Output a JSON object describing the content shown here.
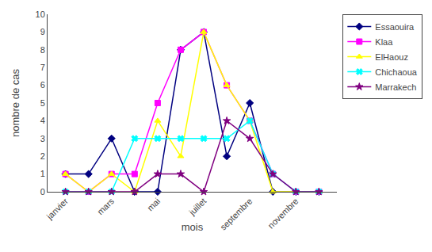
{
  "chart_data": {
    "type": "line",
    "categories": [
      "janvier",
      null,
      "mars",
      null,
      "mai",
      null,
      "juillet",
      null,
      "septembre",
      null,
      "novembre",
      null
    ],
    "series": [
      {
        "name": "Essaouira",
        "color": "#000080",
        "marker": "diamond",
        "values": [
          1,
          1,
          3,
          0,
          0,
          8,
          9,
          2,
          5,
          0,
          0,
          0
        ]
      },
      {
        "name": "Klaa",
        "color": "#FF00FF",
        "marker": "square",
        "values": [
          1,
          0,
          1,
          1,
          5,
          8,
          9,
          6,
          4,
          1,
          0,
          0
        ]
      },
      {
        "name": "ElHaouz",
        "color": "#FFFF00",
        "marker": "triangle-up",
        "values": [
          1,
          0,
          1,
          0,
          4,
          2,
          9,
          6,
          4,
          0,
          0,
          0
        ]
      },
      {
        "name": "Chichaoua",
        "color": "#00FFFF",
        "marker": "x",
        "values": [
          0,
          0,
          0,
          3,
          3,
          3,
          3,
          3,
          4,
          1,
          0,
          0
        ]
      },
      {
        "name": "Marrakech",
        "color": "#800080",
        "marker": "star",
        "values": [
          0,
          0,
          0,
          0,
          1,
          1,
          0,
          4,
          3,
          1,
          0,
          0
        ]
      }
    ],
    "xlabel": "mois",
    "ylabel": "nombre de cas",
    "ylim": [
      0,
      10
    ],
    "yticks": [
      0,
      1,
      2,
      3,
      4,
      5,
      6,
      7,
      8,
      9,
      10
    ],
    "grid": false,
    "legend": "right"
  }
}
